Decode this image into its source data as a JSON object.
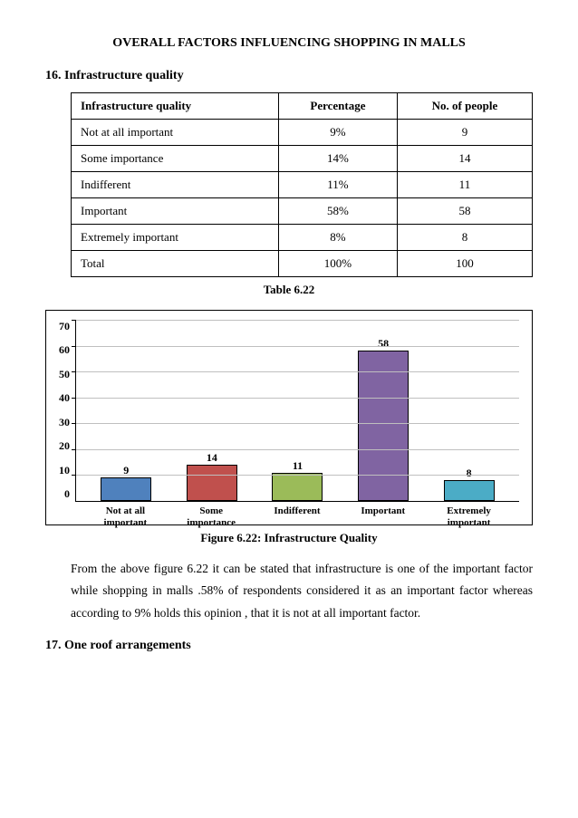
{
  "page": {
    "title": "OVERALL FACTORS INFLUENCING SHOPPING IN MALLS",
    "section16_heading": "16. Infrastructure quality",
    "section17_heading": "17. One roof arrangements",
    "table_caption": "Table 6.22",
    "figure_caption": "Figure 6.22: Infrastructure Quality",
    "body_text": "From the above figure 6.22 it can be stated that infrastructure is one of the important factor while shopping in malls .58% of   respondents considered it as an important factor whereas according to 9% holds this opinion , that it is not at all important factor."
  },
  "table": {
    "headers": [
      "Infrastructure quality",
      "Percentage",
      "No. of people"
    ],
    "rows": [
      [
        "Not at all important",
        "9%",
        "9"
      ],
      [
        "Some importance",
        "14%",
        "14"
      ],
      [
        "Indifferent",
        "11%",
        "11"
      ],
      [
        "Important",
        "58%",
        "58"
      ],
      [
        "Extremely important",
        "8%",
        "8"
      ],
      [
        "Total",
        "100%",
        "100"
      ]
    ]
  },
  "chart": {
    "type": "bar",
    "y_max": 70,
    "y_ticks": [
      0,
      10,
      20,
      30,
      40,
      50,
      60,
      70
    ],
    "categories": [
      "Not at all important",
      "Some importance",
      "Indifferent",
      "Important",
      "Extremely important"
    ],
    "values": [
      9,
      14,
      11,
      58,
      8
    ],
    "bar_colors": [
      "#4f81bd",
      "#c0504d",
      "#9bbb59",
      "#8064a2",
      "#4bacc6"
    ],
    "bar_border": "#000000",
    "grid_color": "#bfbfbf",
    "background": "#ffffff",
    "tick_fontsize": 12,
    "label_fontsize": 11,
    "value_label_fontsize": 12
  }
}
